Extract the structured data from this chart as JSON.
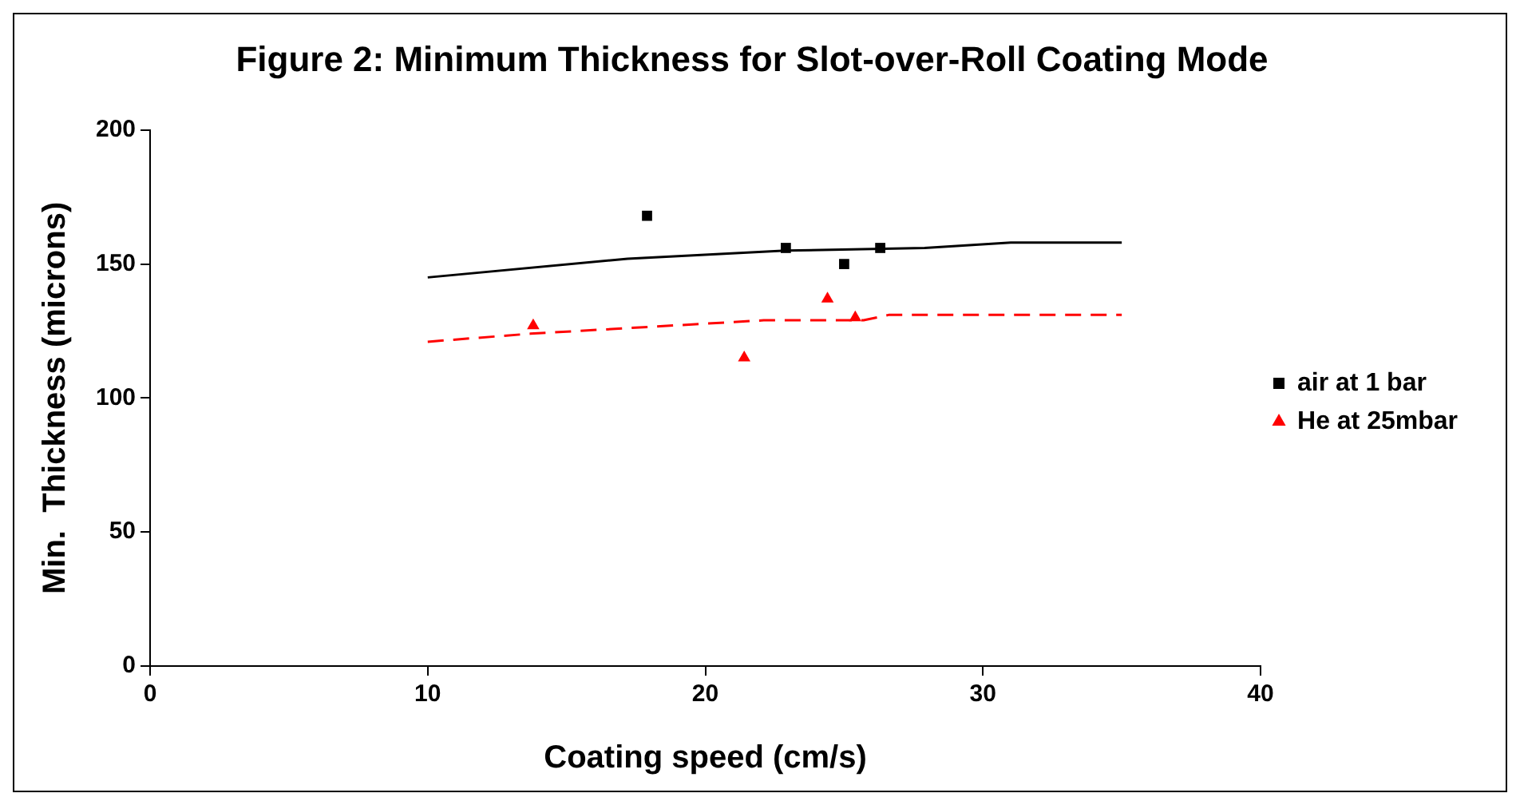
{
  "chart_data": {
    "type": "scatter",
    "title": "Figure 2: Minimum Thickness for Slot-over-Roll Coating Mode",
    "xlabel": "Coating speed (cm/s)",
    "ylabel": "Min.  Thickness (microns)",
    "xlim": [
      0,
      40
    ],
    "xticks": [
      0,
      10,
      20,
      30,
      40
    ],
    "ylim": [
      0,
      200
    ],
    "yticks": [
      0,
      50,
      100,
      150,
      200
    ],
    "grid": false,
    "legend": "right",
    "series": [
      {
        "name": "air at 1 bar",
        "type": "scatter",
        "marker": "square",
        "color": "#000000",
        "x": [
          17.9,
          22.9,
          26.3,
          25.0
        ],
        "values": [
          168,
          156,
          156,
          150
        ]
      },
      {
        "name": "He at 25mbar",
        "type": "scatter",
        "marker": "triangle",
        "color": "#ff0000",
        "x": [
          13.8,
          21.4,
          24.4,
          25.4
        ],
        "values": [
          127,
          115,
          137,
          130
        ]
      },
      {
        "type": "line",
        "marker": "none",
        "line_style": "solid",
        "color": "#000000",
        "x": [
          10,
          17.2,
          22.9,
          27.9,
          31,
          35
        ],
        "values": [
          145,
          152,
          155,
          156,
          158,
          158
        ]
      },
      {
        "type": "line",
        "marker": "none",
        "line_style": "dashed",
        "color": "#ff0000",
        "x": [
          10,
          13.7,
          22.1,
          25.7,
          26.6,
          35
        ],
        "values": [
          121,
          124,
          129,
          129,
          131,
          131
        ]
      }
    ]
  }
}
